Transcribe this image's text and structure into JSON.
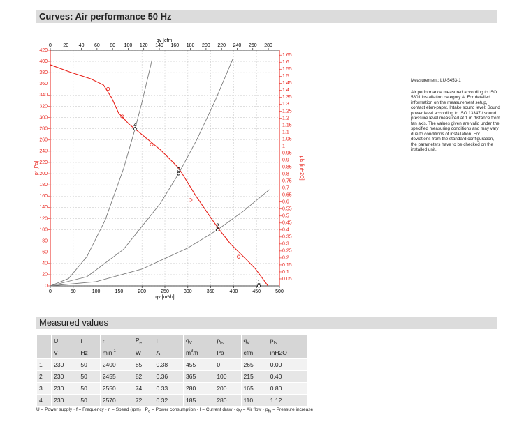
{
  "header": {
    "title": "Curves: Air performance 50 Hz"
  },
  "chart_data": {
    "type": "line",
    "xlabel": "qv [m³/h]",
    "x2label": "qv [cfm]",
    "ylabel": "pf [Pa]",
    "y2label": "pfs [inH2O]",
    "xlim": [
      0,
      500
    ],
    "xticks": [
      0,
      50,
      100,
      150,
      200,
      250,
      300,
      350,
      400,
      450,
      500
    ],
    "x2lim": [
      0,
      294.3
    ],
    "x2ticks": [
      0,
      20,
      40,
      60,
      80,
      100,
      120,
      140,
      160,
      180,
      200,
      220,
      240,
      260,
      280
    ],
    "ylim": [
      0,
      420
    ],
    "yticks": [
      0,
      20,
      40,
      60,
      80,
      100,
      120,
      140,
      160,
      180,
      200,
      220,
      240,
      260,
      280,
      300,
      320,
      340,
      360,
      380,
      400,
      420
    ],
    "y2lim": [
      0,
      1.686
    ],
    "y2ticks": [
      0.05,
      0.1,
      0.15,
      0.2,
      0.25,
      0.3,
      0.35,
      0.4,
      0.45,
      0.5,
      0.55,
      0.6,
      0.65,
      0.7,
      0.75,
      0.8,
      0.85,
      0.9,
      0.95,
      1,
      1.05,
      1.1,
      1.15,
      1.2,
      1.25,
      1.3,
      1.35,
      1.4,
      1.45,
      1.5,
      1.55,
      1.6,
      1.65
    ],
    "grid": true,
    "series": [
      {
        "color": "#e8211a",
        "x": [
          0,
          43,
          88,
          116,
          134,
          149,
          172,
          195,
          241,
          279,
          287,
          317,
          348,
          367,
          393,
          424,
          447,
          475
        ],
        "values": [
          394,
          381,
          369,
          358,
          335,
          308,
          288,
          273,
          242,
          211,
          201,
          161,
          124,
          102,
          75,
          50,
          31,
          0
        ]
      },
      {
        "color": "#7a7a7a",
        "x": [
          0,
          40,
          80,
          120,
          160,
          185,
          200,
          222
        ],
        "values": [
          0,
          13.1,
          52.4,
          117.8,
          209.4,
          280,
          327.2,
          403.2
        ]
      },
      {
        "color": "#7a7a7a",
        "x": [
          0,
          80,
          160,
          240,
          280,
          320,
          360,
          398
        ],
        "values": [
          0,
          16.3,
          65.3,
          146.9,
          200,
          261.2,
          330.6,
          404.1
        ]
      },
      {
        "color": "#7a7a7a",
        "x": [
          0,
          100,
          200,
          300,
          365,
          420,
          478
        ],
        "values": [
          0,
          7.5,
          30,
          67.6,
          100,
          132.4,
          171.5
        ]
      }
    ],
    "markers": {
      "color": "#e8211a",
      "x": [
        126,
        157,
        221,
        306,
        411
      ],
      "values": [
        351,
        302,
        252,
        153,
        52
      ]
    },
    "operating_points": {
      "labels": [
        "1",
        "2",
        "3",
        "4"
      ],
      "x": [
        455,
        365,
        280,
        185
      ],
      "values": [
        0,
        100,
        200,
        280
      ]
    }
  },
  "note": {
    "measurement": "Measurement: LU-5453-1",
    "text": "Air performance measured according to ISO 5801 installation category A. For detailed information on the measurement setup, contact ebm-papst. Intake sound level: Sound power level according to ISO 13347 / sound pressure level measured at 1 m distance from fan axis. The values given are valid under the specified measuring conditions and may vary due to conditions of installation. For deviations from the standard configuration, the parameters have to be checked on the installed unit."
  },
  "section": {
    "title": "Measured values"
  },
  "table": {
    "header": [
      {
        "text": "U"
      },
      {
        "text": "f"
      },
      {
        "text": "n"
      },
      {
        "text": "P",
        "sub": "e"
      },
      {
        "text": "I"
      },
      {
        "text": "q",
        "sub": "V"
      },
      {
        "text": "p",
        "sub": "fs"
      },
      {
        "text": "q",
        "sub": "V"
      },
      {
        "text": "p",
        "sub": "fs"
      }
    ],
    "units": [
      {
        "text": "V"
      },
      {
        "text": "Hz"
      },
      {
        "text": "min",
        "sup": "-1"
      },
      {
        "text": "W"
      },
      {
        "text": "A"
      },
      {
        "text": "m",
        "sup": "3",
        "tail": "/h"
      },
      {
        "text": "Pa"
      },
      {
        "text": "cfm"
      },
      {
        "text": "inH2O"
      }
    ],
    "rows": [
      [
        "1",
        "230",
        "50",
        "2400",
        "85",
        "0.38",
        "455",
        "0",
        "265",
        "0.00"
      ],
      [
        "2",
        "230",
        "50",
        "2455",
        "82",
        "0.36",
        "365",
        "100",
        "215",
        "0.40"
      ],
      [
        "3",
        "230",
        "50",
        "2550",
        "74",
        "0.33",
        "280",
        "200",
        "165",
        "0.80"
      ],
      [
        "4",
        "230",
        "50",
        "2570",
        "72",
        "0.32",
        "185",
        "280",
        "110",
        "1.12"
      ]
    ]
  },
  "legend": {
    "equals": " = ",
    "separator": " · ",
    "items": [
      {
        "text": "U",
        "meaning": "Power supply"
      },
      {
        "text": "f",
        "meaning": "Frequency"
      },
      {
        "text": "n",
        "meaning": "Speed (rpm)"
      },
      {
        "text": "P",
        "sub": "e",
        "meaning": "Power consumption"
      },
      {
        "text": "I",
        "meaning": "Current draw"
      },
      {
        "text": "q",
        "sub": "V",
        "meaning": "Air flow"
      },
      {
        "text": "p",
        "sub": "fs",
        "meaning": "Pressure increase"
      }
    ]
  }
}
